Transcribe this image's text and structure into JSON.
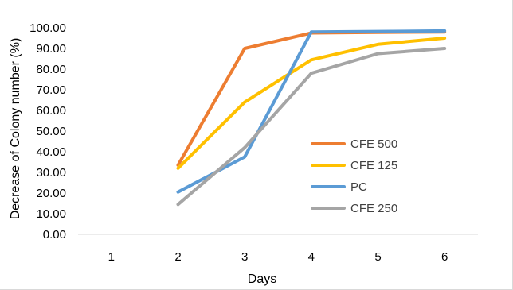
{
  "chart_data": {
    "type": "line",
    "xlabel": "Days",
    "ylabel": "Decrease of Colony number (%)",
    "categories": [
      "1",
      "2",
      "3",
      "4",
      "5",
      "6"
    ],
    "ylim": [
      0,
      100
    ],
    "yticks": [
      "0.00",
      "10.00",
      "20.00",
      "30.00",
      "40.00",
      "50.00",
      "60.00",
      "70.00",
      "80.00",
      "90.00",
      "100.00"
    ],
    "grid": false,
    "legend_position": "right",
    "series": [
      {
        "name": "CFE 500",
        "color": "#ED7D31",
        "values": [
          null,
          33.5,
          90,
          97.5,
          97.8,
          98
        ]
      },
      {
        "name": "CFE 125",
        "color": "#FFC000",
        "values": [
          null,
          32,
          64,
          84.5,
          92,
          95
        ]
      },
      {
        "name": "PC",
        "color": "#5B9BD5",
        "values": [
          null,
          20.5,
          37.5,
          98,
          98.2,
          98.5
        ]
      },
      {
        "name": "CFE 250",
        "color": "#A5A5A5",
        "values": [
          null,
          14.5,
          42,
          78,
          87.5,
          90
        ]
      }
    ]
  }
}
